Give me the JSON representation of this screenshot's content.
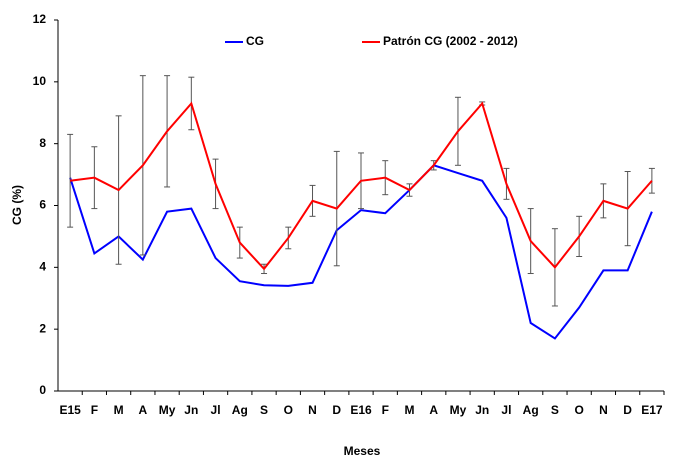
{
  "chart_data": {
    "type": "line",
    "x_label": "Meses",
    "y_label": "CG (%)",
    "categories": [
      "E15",
      "F",
      "M",
      "A",
      "My",
      "Jn",
      "Jl",
      "Ag",
      "S",
      "O",
      "N",
      "D",
      "E16",
      "F",
      "M",
      "A",
      "My",
      "Jn",
      "Jl",
      "Ag",
      "S",
      "O",
      "N",
      "D",
      "E17"
    ],
    "series": [
      {
        "name": "CG",
        "color": "#0000ff",
        "values": [
          6.9,
          4.45,
          5.0,
          4.25,
          5.8,
          5.9,
          4.3,
          3.55,
          3.42,
          3.4,
          3.5,
          5.2,
          5.85,
          5.75,
          6.5,
          7.3,
          7.05,
          6.8,
          5.6,
          2.2,
          1.7,
          2.7,
          3.9,
          3.9,
          5.8
        ]
      },
      {
        "name": "Patrón CG (2002 - 2012)",
        "color": "#ff0000",
        "values": [
          6.8,
          6.9,
          6.5,
          7.3,
          8.4,
          9.3,
          6.7,
          4.8,
          3.95,
          4.95,
          6.15,
          5.9,
          6.8,
          6.9,
          6.5,
          7.3,
          8.4,
          9.3,
          6.7,
          4.85,
          4.0,
          5.0,
          6.15,
          5.9,
          6.8
        ],
        "errors": [
          1.5,
          1.0,
          2.4,
          2.9,
          1.8,
          0.85,
          0.8,
          0.5,
          0.15,
          0.35,
          0.5,
          1.85,
          0.9,
          0.55,
          0.2,
          0.15,
          1.1,
          0.05,
          0.5,
          1.05,
          1.25,
          0.65,
          0.55,
          1.2,
          0.4
        ]
      }
    ],
    "ylim": [
      0,
      12
    ],
    "yticks": [
      0,
      2,
      4,
      6,
      8,
      10,
      12
    ],
    "legend": "top",
    "grid": false
  }
}
